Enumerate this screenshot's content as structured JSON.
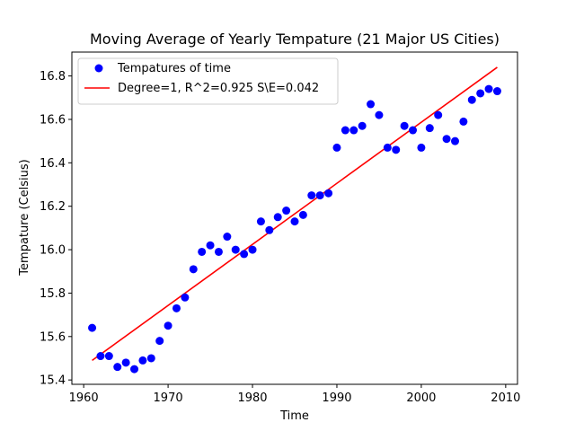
{
  "chart_data": {
    "type": "scatter",
    "title": "Moving Average of Yearly Tempature (21 Major US Cities)",
    "xlabel": "Time",
    "ylabel": "Tempature (Celsius)",
    "xlim": [
      1958.6,
      2011.4
    ],
    "ylim": [
      15.38,
      16.91
    ],
    "x_ticks": [
      1960,
      1970,
      1980,
      1990,
      2000,
      2010
    ],
    "y_ticks": [
      15.4,
      15.6,
      15.8,
      16.0,
      16.2,
      16.4,
      16.6,
      16.8
    ],
    "x_tick_labels": [
      "1960",
      "1970",
      "1980",
      "1990",
      "2000",
      "2010"
    ],
    "y_tick_labels": [
      "15.4",
      "15.6",
      "15.8",
      "16.0",
      "16.2",
      "16.4",
      "16.6",
      "16.8"
    ],
    "grid": false,
    "legend_position": "top-left",
    "series": [
      {
        "name": "Tempatures of time",
        "kind": "scatter",
        "color": "#0000ff",
        "x": [
          1961,
          1962,
          1963,
          1964,
          1965,
          1966,
          1967,
          1968,
          1969,
          1970,
          1971,
          1972,
          1973,
          1974,
          1975,
          1976,
          1977,
          1978,
          1979,
          1980,
          1981,
          1982,
          1983,
          1984,
          1985,
          1986,
          1987,
          1988,
          1989,
          1990,
          1991,
          1992,
          1993,
          1994,
          1995,
          1996,
          1997,
          1998,
          1999,
          2000,
          2001,
          2002,
          2003,
          2004,
          2005,
          2006,
          2007,
          2008,
          2009
        ],
        "y": [
          15.64,
          15.51,
          15.51,
          15.46,
          15.48,
          15.45,
          15.49,
          15.5,
          15.58,
          15.65,
          15.73,
          15.78,
          15.91,
          15.99,
          16.02,
          15.99,
          16.06,
          16.0,
          15.98,
          16.0,
          16.13,
          16.09,
          16.15,
          16.18,
          16.13,
          16.16,
          16.25,
          16.25,
          16.26,
          16.47,
          16.55,
          16.55,
          16.57,
          16.67,
          16.62,
          16.47,
          16.46,
          16.57,
          16.55,
          16.47,
          16.56,
          16.62,
          16.51,
          16.5,
          16.59,
          16.69,
          16.72,
          16.74,
          16.73
        ]
      },
      {
        "name": "Degree=1, R^2=0.925 S\\E=0.042",
        "kind": "line",
        "color": "#ff0000",
        "x": [
          1961,
          2009
        ],
        "y": [
          15.49,
          16.84
        ]
      }
    ]
  }
}
